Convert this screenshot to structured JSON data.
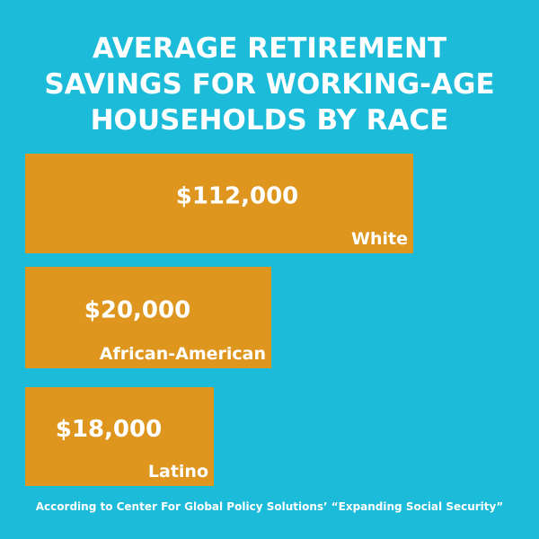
{
  "title_lines": [
    "AVERAGE RETIREMENT",
    "SAVINGS FOR WORKING-AGE",
    "HOUSEHOLDS BY RACE"
  ],
  "colors": {
    "background": "#1bbbd9",
    "bar": "#de961f",
    "text": "#ffffff"
  },
  "chart_data": {
    "type": "bar",
    "orientation": "horizontal",
    "title": "AVERAGE RETIREMENT SAVINGS FOR WORKING-AGE HOUSEHOLDS BY RACE",
    "categories": [
      "White",
      "African-American",
      "Latino"
    ],
    "values": [
      112000,
      20000,
      18000
    ],
    "value_labels": [
      "$112,000",
      "$20,000",
      "$18,000"
    ],
    "grid": false,
    "legend": "none"
  },
  "footnote": "According to Center For Global Policy Solutions’ “Expanding Social Security”"
}
